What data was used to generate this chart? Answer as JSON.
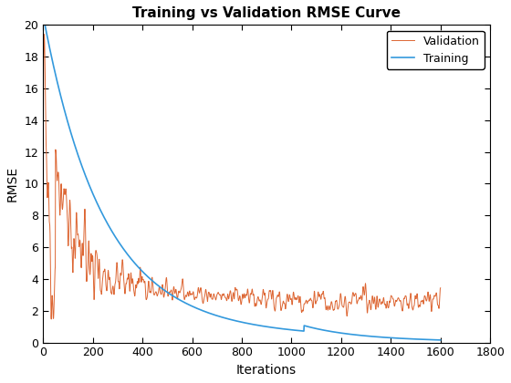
{
  "title": "Training vs Validation RMSE Curve",
  "xlabel": "Iterations",
  "ylabel": "RMSE",
  "xlim": [
    0,
    1800
  ],
  "ylim": [
    0,
    20
  ],
  "xticks": [
    0,
    200,
    400,
    600,
    800,
    1000,
    1200,
    1400,
    1600,
    1800
  ],
  "yticks": [
    0,
    2,
    4,
    6,
    8,
    10,
    12,
    14,
    16,
    18,
    20
  ],
  "training_color": "#3399dd",
  "validation_color": "#dd6633",
  "training_label": "Training",
  "validation_label": "Validation",
  "training_linewidth": 1.2,
  "validation_linewidth": 0.7,
  "background_color": "#ffffff",
  "legend_loc": "upper right",
  "figsize": [
    5.6,
    4.2
  ],
  "dpi": 100
}
